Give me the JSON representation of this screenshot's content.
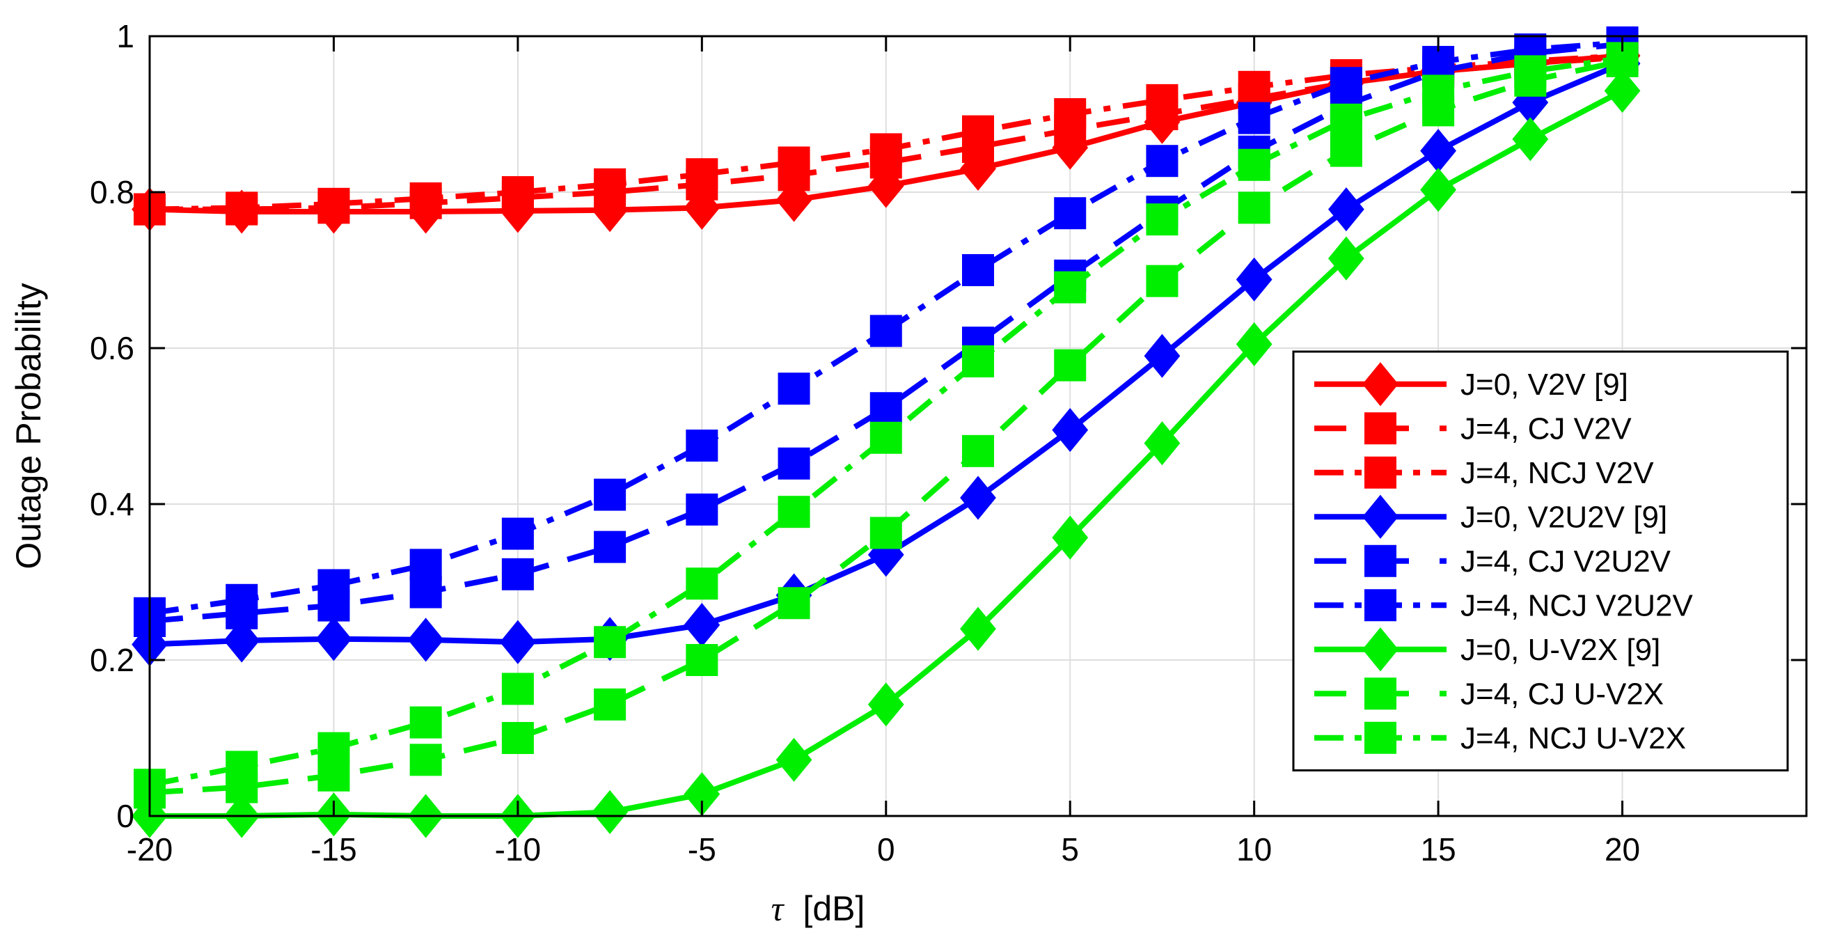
{
  "chart_data": {
    "type": "line",
    "title": "",
    "xlabel_symbol": "τ",
    "xlabel_unit": "[dB]",
    "ylabel": "Outage Probability",
    "xlim": [
      -20,
      25
    ],
    "ylim": [
      0,
      1
    ],
    "grid": true,
    "legend_position": "right",
    "xticks": [
      -20,
      -15,
      -10,
      -5,
      0,
      5,
      10,
      15,
      20
    ],
    "xtick_labels": [
      "-20",
      "-15",
      "-10",
      "-5",
      "0",
      "5",
      "10",
      "15",
      "20"
    ],
    "yticks": [
      0,
      0.2,
      0.4,
      0.6,
      0.8,
      1
    ],
    "ytick_labels": [
      "0",
      "0.2",
      "0.4",
      "0.6",
      "0.8",
      "1"
    ],
    "x": [
      -20,
      -17.5,
      -15,
      -12.5,
      -10,
      -7.5,
      -5,
      -2.5,
      0,
      2.5,
      5,
      7.5,
      10,
      12.5,
      15,
      17.5,
      20
    ],
    "series": [
      {
        "name": "J=0, V2V [9]",
        "color": "#ff0000",
        "dash": "solid",
        "marker": "diamond",
        "values": [
          0.778,
          0.775,
          0.775,
          0.775,
          0.776,
          0.777,
          0.78,
          0.79,
          0.808,
          0.83,
          0.857,
          0.89,
          0.915,
          0.94,
          0.955,
          0.965,
          0.975
        ]
      },
      {
        "name": "J=4, CJ V2V",
        "color": "#ff0000",
        "dash": "dashed",
        "marker": "square",
        "values": [
          0.778,
          0.778,
          0.78,
          0.786,
          0.793,
          0.8,
          0.81,
          0.822,
          0.838,
          0.858,
          0.88,
          0.9,
          0.92,
          0.94,
          0.955,
          0.965,
          0.973
        ]
      },
      {
        "name": "J=4, NCJ V2V",
        "color": "#ff0000",
        "dash": "dashdot",
        "marker": "square",
        "values": [
          0.778,
          0.78,
          0.785,
          0.792,
          0.8,
          0.81,
          0.823,
          0.838,
          0.855,
          0.878,
          0.9,
          0.918,
          0.935,
          0.95,
          0.96,
          0.968,
          0.975
        ]
      },
      {
        "name": "J=0, V2U2V [9]",
        "color": "#0000ff",
        "dash": "solid",
        "marker": "diamond",
        "values": [
          0.22,
          0.225,
          0.227,
          0.226,
          0.223,
          0.227,
          0.245,
          0.283,
          0.335,
          0.408,
          0.495,
          0.59,
          0.688,
          0.778,
          0.853,
          0.915,
          0.965
        ]
      },
      {
        "name": "J=4, CJ V2U2V",
        "color": "#0000ff",
        "dash": "dashed",
        "marker": "square",
        "values": [
          0.25,
          0.26,
          0.27,
          0.287,
          0.31,
          0.345,
          0.393,
          0.452,
          0.523,
          0.607,
          0.693,
          0.775,
          0.852,
          0.912,
          0.955,
          0.978,
          0.99
        ]
      },
      {
        "name": "J=4, NCJ V2U2V",
        "color": "#0000ff",
        "dash": "dashdot",
        "marker": "square",
        "values": [
          0.26,
          0.277,
          0.296,
          0.322,
          0.362,
          0.412,
          0.475,
          0.548,
          0.622,
          0.7,
          0.773,
          0.84,
          0.895,
          0.94,
          0.967,
          0.983,
          0.992
        ]
      },
      {
        "name": "J=0, U-V2X [9]",
        "color": "#00ee00",
        "dash": "solid",
        "marker": "diamond",
        "values": [
          0.0,
          0.0,
          0.002,
          0.0,
          0.0,
          0.005,
          0.028,
          0.072,
          0.143,
          0.24,
          0.357,
          0.478,
          0.605,
          0.715,
          0.803,
          0.868,
          0.93
        ]
      },
      {
        "name": "J=4, CJ U-V2X",
        "color": "#00ee00",
        "dash": "dashed",
        "marker": "square",
        "values": [
          0.03,
          0.037,
          0.052,
          0.072,
          0.1,
          0.143,
          0.2,
          0.273,
          0.363,
          0.468,
          0.578,
          0.686,
          0.78,
          0.853,
          0.905,
          0.943,
          0.968
        ]
      },
      {
        "name": "J=4, NCJ U-V2X",
        "color": "#00ee00",
        "dash": "dashdot",
        "marker": "square",
        "values": [
          0.04,
          0.063,
          0.087,
          0.12,
          0.163,
          0.223,
          0.298,
          0.39,
          0.485,
          0.583,
          0.678,
          0.765,
          0.835,
          0.893,
          0.93,
          0.955,
          0.972
        ]
      }
    ]
  }
}
